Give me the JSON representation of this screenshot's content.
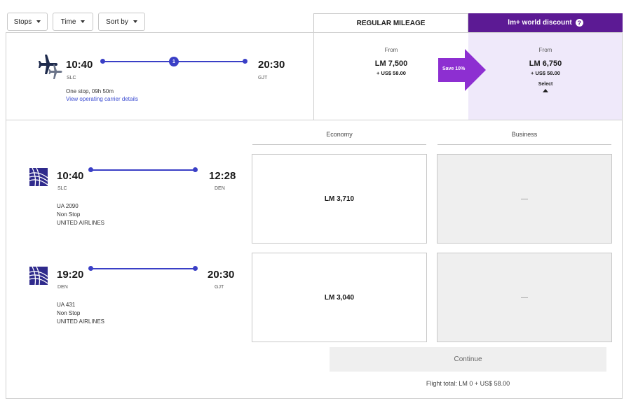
{
  "filters": {
    "stops_label": "Stops",
    "time_label": "Time",
    "sort_label": "Sort by"
  },
  "tabs": {
    "regular": "REGULAR MILEAGE",
    "world": "lm+ world discount"
  },
  "summary": {
    "depart_time": "10:40",
    "depart_code": "SLC",
    "arrive_time": "20:30",
    "arrive_code": "GJT",
    "stops_count": "1",
    "duration": "One stop, 09h 50m",
    "details_link": "View operating carrier details",
    "regular": {
      "from": "From",
      "price": "LM 7,500",
      "tax": "+ US$ 58.00"
    },
    "world": {
      "from": "From",
      "price": "LM 6,750",
      "tax": "+ US$ 58.00",
      "select": "Select"
    },
    "save_label": "Save 10%"
  },
  "columns": {
    "economy": "Economy",
    "business": "Business"
  },
  "segments": [
    {
      "depart_time": "10:40",
      "depart_code": "SLC",
      "arrive_time": "12:28",
      "arrive_code": "DEN",
      "flight": "UA 2090",
      "stops": "Non Stop",
      "airline": "UNITED AIRLINES",
      "economy": "LM 3,710",
      "business": "—"
    },
    {
      "depart_time": "19:20",
      "depart_code": "DEN",
      "arrive_time": "20:30",
      "arrive_code": "GJT",
      "flight": "UA 431",
      "stops": "Non Stop",
      "airline": "UNITED AIRLINES",
      "economy": "LM 3,040",
      "business": "—"
    }
  ],
  "footer": {
    "continue": "Continue",
    "total": "Flight total: LM 0 + US$ 58.00"
  },
  "colors": {
    "brand_purple": "#5c1a94",
    "line_blue": "#3a3fc6",
    "world_bg": "#efe9fa",
    "save_arrow": "#8d2fd1"
  }
}
